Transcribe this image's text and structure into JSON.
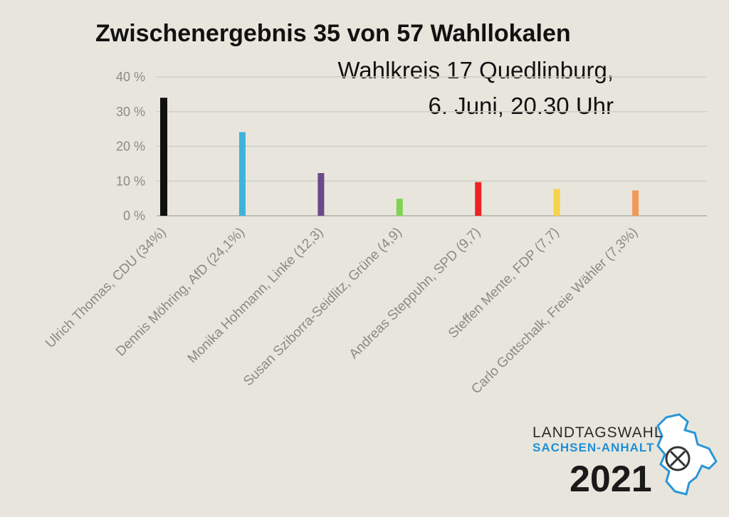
{
  "chart_data": {
    "type": "bar",
    "title": "Zwischenergebnis 35 von 57 Wahllokalen",
    "subtitle_lines": [
      "Wahlkreis 17 Quedlinburg,",
      "6. Juni, 20.30 Uhr"
    ],
    "xlabel": "",
    "ylabel": "",
    "ylim": [
      0,
      40
    ],
    "yticks": [
      0,
      10,
      20,
      30,
      40
    ],
    "ytick_labels": [
      "0 %",
      "10 %",
      "20 %",
      "30 %",
      "40 %"
    ],
    "grid": true,
    "categories": [
      "Ulrich Thomas, CDU (34%)",
      "Dennis Möhring, AfD (24,1%)",
      "Monika Hohmann, Linke (12,3)",
      "Susan Sziborra-Seidlitz,  Grüne (4,9)",
      "Andreas Steppuhn, SPD (9,7)",
      "Steffen Mente, FDP (7,7)",
      "Carlo Gottschalk, Freie Wähler (7,3%)"
    ],
    "values": [
      34,
      24.1,
      12.3,
      4.9,
      9.7,
      7.7,
      7.3
    ],
    "colors": [
      "#111111",
      "#3fb3d9",
      "#6a4a8a",
      "#7fd44f",
      "#ee2222",
      "#f7d24a",
      "#f2995a"
    ]
  },
  "logo": {
    "line1": "LANDTAGSWAHL",
    "line2": "SACHSEN-ANHALT",
    "line3": "2021",
    "icon": "sachsen-anhalt-map-ballot-icon"
  }
}
